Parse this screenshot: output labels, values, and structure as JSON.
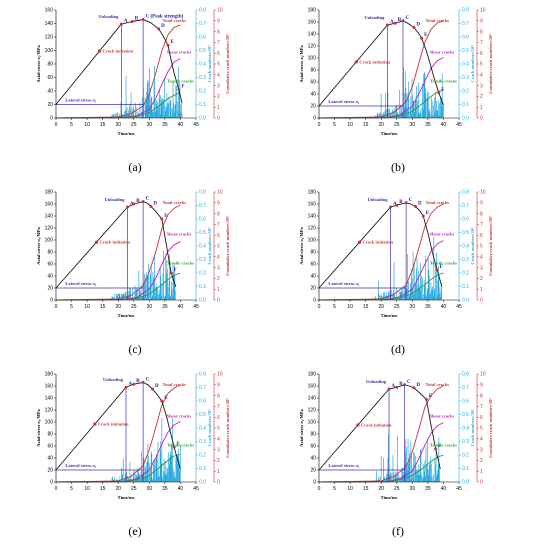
{
  "colors": {
    "stress": "#1a1a1a",
    "guide": "#3b32b0",
    "lateral": "#3b32b0",
    "ae_bars": "#29a8e0",
    "total_cracks": "#c8323a",
    "shear_cracks": "#c21ec2",
    "tensile_cracks": "#2e9b2e",
    "right_axis_1": "#29a8e0",
    "right_axis_2": "#c8323a",
    "point_marker": "#c8323a"
  },
  "chart_data": [
    {
      "panel_label": "(a)",
      "type": "line",
      "xlabel": "Time/ms",
      "ylabel": "Axial stress σ₁/MPa",
      "y2label": "Crack numbers/10³",
      "y3label": "Cumulative crack numbers/10³",
      "xlim": [
        0,
        45
      ],
      "xticks": [
        0,
        5,
        10,
        15,
        20,
        25,
        30,
        35,
        40,
        45
      ],
      "ylim": [
        0,
        160
      ],
      "yticks": [
        0,
        20,
        40,
        60,
        80,
        100,
        120,
        140,
        160
      ],
      "y2lim": [
        0,
        0.8
      ],
      "y2ticks": [
        0.0,
        0.1,
        0.2,
        0.3,
        0.4,
        0.5,
        0.6,
        0.7,
        0.8
      ],
      "y3lim": [
        0,
        10
      ],
      "y3ticks": [
        0,
        1,
        2,
        3,
        4,
        5,
        6,
        7,
        8,
        9,
        10
      ],
      "labels": {
        "unloading": "Unloading",
        "peak": "C (Peak strength)",
        "crack_init": "Crack initiation",
        "lateral": "Lateral stress σ₃",
        "total": "Total cracks",
        "shear": "Shear cracks",
        "tensile": "Tensile cracks"
      },
      "points": [
        {
          "name": "A",
          "t": 21
        },
        {
          "name": "B",
          "t": 24.5
        },
        {
          "name": "C",
          "t": 28
        },
        {
          "name": "D",
          "t": 33
        },
        {
          "name": "E",
          "t": 36
        },
        {
          "name": "F",
          "t": 39.5
        }
      ],
      "stress": {
        "t": [
          0,
          21,
          24.5,
          28,
          29,
          30.5,
          33,
          34.5,
          36,
          37,
          38,
          39.5,
          40.5
        ],
        "v": [
          20,
          139,
          143,
          146,
          144,
          141,
          132,
          121,
          108,
          86,
          66,
          42,
          22
        ]
      },
      "unload_t": 21,
      "crack_init_t": 14,
      "lateral_v": 20,
      "total_cracks": {
        "t": [
          0,
          20,
          24,
          28,
          30,
          32,
          34,
          36,
          38,
          40
        ],
        "v": [
          0,
          0.1,
          0.4,
          1.1,
          2.2,
          4.1,
          6.2,
          7.7,
          8.4,
          8.6
        ]
      },
      "shear_cracks": {
        "t": [
          0,
          22,
          26,
          30,
          32,
          34,
          36,
          38,
          40
        ],
        "v": [
          0,
          0.05,
          0.2,
          0.8,
          1.8,
          3.1,
          4.3,
          5.2,
          5.5
        ]
      },
      "tensile_cracks": {
        "t": [
          0,
          22,
          26,
          30,
          33,
          36,
          38,
          40
        ],
        "v": [
          0,
          0.03,
          0.15,
          0.5,
          1.1,
          1.8,
          2.1,
          2.4
        ]
      }
    },
    {
      "panel_label": "(b)",
      "type": "line",
      "xlabel": "Time/ms",
      "ylabel": "Axial stress σ₁/MPa",
      "y2label": "Crack numbers/10³",
      "y3label": "Cumulative crack numbers/10³",
      "xlim": [
        0,
        45
      ],
      "xticks": [
        0,
        5,
        10,
        15,
        20,
        25,
        30,
        35,
        40,
        45
      ],
      "ylim": [
        0,
        180
      ],
      "yticks": [
        0,
        20,
        40,
        60,
        80,
        100,
        120,
        140,
        160,
        180
      ],
      "y2lim": [
        0,
        0.8
      ],
      "y2ticks": [
        0.0,
        0.1,
        0.2,
        0.3,
        0.4,
        0.5,
        0.6,
        0.7,
        0.8
      ],
      "y3lim": [
        0,
        10
      ],
      "y3ticks": [
        0,
        1,
        2,
        3,
        4,
        5,
        6,
        7,
        8,
        9,
        10
      ],
      "labels": {
        "unloading": "Unloading",
        "peak": "C",
        "crack_init": "Crack initiation",
        "lateral": "Lateral stress σ₃",
        "total": "Total cracks",
        "shear": "Shear cracks",
        "tensile": "Tensile cracks"
      },
      "points": [
        {
          "name": "A",
          "t": 22
        },
        {
          "name": "B",
          "t": 24.5
        },
        {
          "name": "C",
          "t": 27
        },
        {
          "name": "D",
          "t": 30.5
        },
        {
          "name": "E",
          "t": 33
        },
        {
          "name": "F",
          "t": 38.5
        }
      ],
      "stress": {
        "t": [
          0,
          22,
          24.5,
          27,
          28.5,
          30.5,
          32,
          33,
          34.5,
          36,
          37.5,
          38.5,
          40
        ],
        "v": [
          20,
          155,
          158,
          162,
          158,
          151,
          141,
          133,
          112,
          85,
          58,
          42,
          22
        ]
      },
      "unload_t": 22,
      "crack_init_t": 12,
      "lateral_v": 20,
      "total_cracks": {
        "t": [
          0,
          20,
          24,
          28,
          30,
          32,
          34,
          36,
          38,
          40
        ],
        "v": [
          0,
          0.1,
          0.5,
          1.5,
          2.9,
          5.0,
          7.0,
          8.2,
          8.8,
          9.0
        ]
      },
      "shear_cracks": {
        "t": [
          0,
          22,
          26,
          30,
          32,
          34,
          36,
          38,
          40
        ],
        "v": [
          0,
          0.05,
          0.3,
          1.1,
          2.2,
          3.4,
          4.6,
          5.3,
          5.6
        ]
      },
      "tensile_cracks": {
        "t": [
          0,
          22,
          26,
          30,
          33,
          36,
          38,
          40
        ],
        "v": [
          0,
          0.03,
          0.2,
          0.6,
          1.3,
          2.0,
          2.4,
          2.6
        ]
      }
    },
    {
      "panel_label": "(c)",
      "type": "line",
      "xlabel": "Time/ms",
      "ylabel": "Axial stress σ₁/MPa",
      "y2label": "Crack numbers/10³",
      "y3label": "Cumulative crack numbers/10³",
      "xlim": [
        0,
        45
      ],
      "xticks": [
        0,
        5,
        10,
        15,
        20,
        25,
        30,
        35,
        40,
        45
      ],
      "ylim": [
        0,
        180
      ],
      "yticks": [
        0,
        20,
        40,
        60,
        80,
        100,
        120,
        140,
        160,
        180
      ],
      "y2lim": [
        0,
        0.8
      ],
      "y2ticks": [
        0.0,
        0.1,
        0.2,
        0.3,
        0.4,
        0.5,
        0.6,
        0.7,
        0.8
      ],
      "y3lim": [
        0,
        10
      ],
      "y3ticks": [
        0,
        1,
        2,
        3,
        4,
        5,
        6,
        7,
        8,
        9,
        10
      ],
      "labels": {
        "unloading": "Unloading",
        "peak": "C",
        "crack_init": "Crack initiation",
        "lateral": "Lateral stress σ₃",
        "total": "Total cracks",
        "shear": "Shear cracks",
        "tensile": "Tensile cracks"
      },
      "points": [
        {
          "name": "A",
          "t": 23
        },
        {
          "name": "B",
          "t": 25
        },
        {
          "name": "C",
          "t": 28
        },
        {
          "name": "D",
          "t": 30.5
        },
        {
          "name": "E",
          "t": 34
        },
        {
          "name": "F",
          "t": 37
        }
      ],
      "stress": {
        "t": [
          0,
          23,
          25,
          28,
          29.5,
          30.5,
          32,
          34,
          35.5,
          37,
          38.5
        ],
        "v": [
          20,
          155,
          160,
          164,
          161,
          156,
          148,
          135,
          92,
          45,
          22
        ]
      },
      "unload_t": 23,
      "crack_init_t": 13,
      "lateral_v": 20,
      "total_cracks": {
        "t": [
          0,
          20,
          24,
          28,
          30,
          32,
          34,
          36,
          38,
          40
        ],
        "v": [
          0,
          0.1,
          0.4,
          1.3,
          2.6,
          4.4,
          6.6,
          7.9,
          8.5,
          8.8
        ]
      },
      "shear_cracks": {
        "t": [
          0,
          22,
          26,
          30,
          32,
          34,
          36,
          38,
          40
        ],
        "v": [
          0,
          0.05,
          0.25,
          1.0,
          2.0,
          3.3,
          4.5,
          5.1,
          5.4
        ]
      },
      "tensile_cracks": {
        "t": [
          0,
          22,
          26,
          30,
          33,
          36,
          38,
          40
        ],
        "v": [
          0,
          0.03,
          0.15,
          0.55,
          1.2,
          1.9,
          2.3,
          2.5
        ]
      }
    },
    {
      "panel_label": "(d)",
      "type": "line",
      "xlabel": "Time/ms",
      "ylabel": "Axial stress σ₁/MPa",
      "y2label": "Crack numbers/10³",
      "y3label": "Cumulative crack numbers/10³",
      "xlim": [
        0,
        45
      ],
      "xticks": [
        0,
        5,
        10,
        15,
        20,
        25,
        30,
        35,
        40,
        45
      ],
      "ylim": [
        0,
        180
      ],
      "yticks": [
        0,
        20,
        40,
        60,
        80,
        100,
        120,
        140,
        160,
        180
      ],
      "y2lim": [
        0,
        0.8
      ],
      "y2ticks": [
        0.0,
        0.1,
        0.2,
        0.3,
        0.4,
        0.5,
        0.6,
        0.7,
        0.8
      ],
      "y3lim": [
        0,
        10
      ],
      "y3ticks": [
        0,
        1,
        2,
        3,
        4,
        5,
        6,
        7,
        8,
        9,
        10
      ],
      "labels": {
        "unloading": "Unloading",
        "peak": "C",
        "crack_init": "Crack initiation",
        "lateral": "Lateral stress σ₃",
        "total": "Total cracks",
        "shear": "Shear cracks",
        "tensile": "Tensile cracks"
      },
      "points": [
        {
          "name": "A",
          "t": 23
        },
        {
          "name": "B",
          "t": 25
        },
        {
          "name": "C",
          "t": 28
        },
        {
          "name": "D",
          "t": 31
        },
        {
          "name": "E",
          "t": 33.5
        },
        {
          "name": "F",
          "t": 38
        }
      ],
      "stress": {
        "t": [
          0,
          23,
          25,
          28,
          29.5,
          31,
          32.5,
          33.5,
          35,
          36.5,
          38,
          39.5
        ],
        "v": [
          20,
          155,
          158,
          162,
          160,
          156,
          148,
          140,
          112,
          78,
          50,
          22
        ]
      },
      "unload_t": 23,
      "crack_init_t": 13,
      "lateral_v": 20,
      "total_cracks": {
        "t": [
          0,
          20,
          24,
          28,
          30,
          32,
          34,
          36,
          38,
          40
        ],
        "v": [
          0,
          0.1,
          0.5,
          1.4,
          2.8,
          4.7,
          6.8,
          8.0,
          8.6,
          8.9
        ]
      },
      "shear_cracks": {
        "t": [
          0,
          22,
          26,
          30,
          32,
          34,
          36,
          38,
          40
        ],
        "v": [
          0,
          0.05,
          0.3,
          1.0,
          2.1,
          3.3,
          4.5,
          5.2,
          5.5
        ]
      },
      "tensile_cracks": {
        "t": [
          0,
          22,
          26,
          30,
          33,
          36,
          38,
          40
        ],
        "v": [
          0,
          0.03,
          0.2,
          0.6,
          1.2,
          1.9,
          2.3,
          2.5
        ]
      }
    },
    {
      "panel_label": "(e)",
      "type": "line",
      "xlabel": "Time/ms",
      "ylabel": "Axial stress σ₁/MPa",
      "y2label": "Crack numbers/10³",
      "y3label": "Cumulative crack numbers/10³",
      "xlim": [
        0,
        45
      ],
      "xticks": [
        0,
        5,
        10,
        15,
        20,
        25,
        30,
        35,
        40,
        45
      ],
      "ylim": [
        0,
        180
      ],
      "yticks": [
        0,
        20,
        40,
        60,
        80,
        100,
        120,
        140,
        160,
        180
      ],
      "y2lim": [
        0,
        0.8
      ],
      "y2ticks": [
        0.0,
        0.1,
        0.2,
        0.3,
        0.4,
        0.5,
        0.6,
        0.7,
        0.8
      ],
      "y3lim": [
        0,
        10
      ],
      "y3ticks": [
        0,
        1,
        2,
        3,
        4,
        5,
        6,
        7,
        8,
        9,
        10
      ],
      "labels": {
        "unloading": "Unloading",
        "peak": "C",
        "crack_init": "Crack initiation",
        "lateral": "Lateral stress σ₃",
        "total": "Total cracks",
        "shear": "Shear cracks",
        "tensile": "Tensile cracks"
      },
      "points": [
        {
          "name": "A",
          "t": 22.5
        },
        {
          "name": "B",
          "t": 25
        },
        {
          "name": "C",
          "t": 28
        },
        {
          "name": "D",
          "t": 31
        },
        {
          "name": "E",
          "t": 34
        },
        {
          "name": "F",
          "t": 38
        }
      ],
      "stress": {
        "t": [
          0,
          22.5,
          25,
          28,
          29.5,
          31,
          32.5,
          34,
          35.5,
          37,
          38.5,
          40
        ],
        "v": [
          20,
          158,
          163,
          166,
          162,
          155,
          146,
          135,
          110,
          78,
          48,
          22
        ]
      },
      "unload_t": 22.5,
      "crack_init_t": 12.5,
      "lateral_v": 20,
      "total_cracks": {
        "t": [
          0,
          20,
          24,
          28,
          30,
          32,
          34,
          36,
          38,
          40
        ],
        "v": [
          0,
          0.1,
          0.5,
          1.5,
          3.0,
          5.0,
          7.1,
          8.2,
          8.7,
          9.0
        ]
      },
      "shear_cracks": {
        "t": [
          0,
          22,
          26,
          30,
          32,
          34,
          36,
          38,
          40
        ],
        "v": [
          0,
          0.05,
          0.3,
          1.1,
          2.2,
          3.5,
          4.6,
          5.3,
          5.6
        ]
      },
      "tensile_cracks": {
        "t": [
          0,
          22,
          26,
          30,
          33,
          36,
          38,
          40
        ],
        "v": [
          0,
          0.03,
          0.2,
          0.6,
          1.3,
          2.0,
          2.4,
          2.6
        ]
      }
    },
    {
      "panel_label": "(f)",
      "type": "line",
      "xlabel": "Time/ms",
      "ylabel": "Axial stress σ₁/MPa",
      "y2label": "Crack numbers/10³",
      "y3label": "Cumulative crack numbers/10³",
      "xlim": [
        0,
        45
      ],
      "xticks": [
        0,
        5,
        10,
        15,
        20,
        25,
        30,
        35,
        40,
        45
      ],
      "ylim": [
        0,
        180
      ],
      "yticks": [
        0,
        20,
        40,
        60,
        80,
        100,
        120,
        140,
        160,
        180
      ],
      "y2lim": [
        0,
        0.8
      ],
      "y2ticks": [
        0.0,
        0.1,
        0.2,
        0.3,
        0.4,
        0.5,
        0.6,
        0.7,
        0.8
      ],
      "y3lim": [
        0,
        10
      ],
      "y3ticks": [
        0,
        1,
        2,
        3,
        4,
        5,
        6,
        7,
        8,
        9,
        10
      ],
      "labels": {
        "unloading": "Unloading",
        "peak": "C",
        "crack_init": "Crack initiation",
        "lateral": "Lateral stress σ₃",
        "total": "Total cracks",
        "shear": "Shear cracks",
        "tensile": "Tensile cracks"
      },
      "points": [
        {
          "name": "A",
          "t": 22.5
        },
        {
          "name": "B",
          "t": 25
        },
        {
          "name": "C",
          "t": 27.5
        },
        {
          "name": "D",
          "t": 30.5
        },
        {
          "name": "E",
          "t": 34.5
        },
        {
          "name": "F",
          "t": 37.5
        }
      ],
      "stress": {
        "t": [
          0,
          22.5,
          25,
          27.5,
          29,
          30.5,
          32,
          34.5,
          36,
          37.5,
          39
        ],
        "v": [
          20,
          155,
          158,
          162,
          160,
          157,
          150,
          138,
          95,
          55,
          22
        ]
      },
      "unload_t": 22.5,
      "crack_init_t": 12.5,
      "lateral_v": 20,
      "total_cracks": {
        "t": [
          0,
          20,
          24,
          28,
          30,
          32,
          34,
          36,
          38,
          40
        ],
        "v": [
          0,
          0.1,
          0.5,
          1.4,
          2.8,
          4.8,
          6.9,
          8.0,
          8.6,
          8.9
        ]
      },
      "shear_cracks": {
        "t": [
          0,
          22,
          26,
          30,
          32,
          34,
          36,
          38,
          40
        ],
        "v": [
          0,
          0.05,
          0.3,
          1.0,
          2.1,
          3.4,
          4.5,
          5.2,
          5.5
        ]
      },
      "tensile_cracks": {
        "t": [
          0,
          22,
          26,
          30,
          33,
          36,
          38,
          40
        ],
        "v": [
          0,
          0.03,
          0.2,
          0.6,
          1.2,
          1.9,
          2.3,
          2.5
        ]
      }
    }
  ]
}
